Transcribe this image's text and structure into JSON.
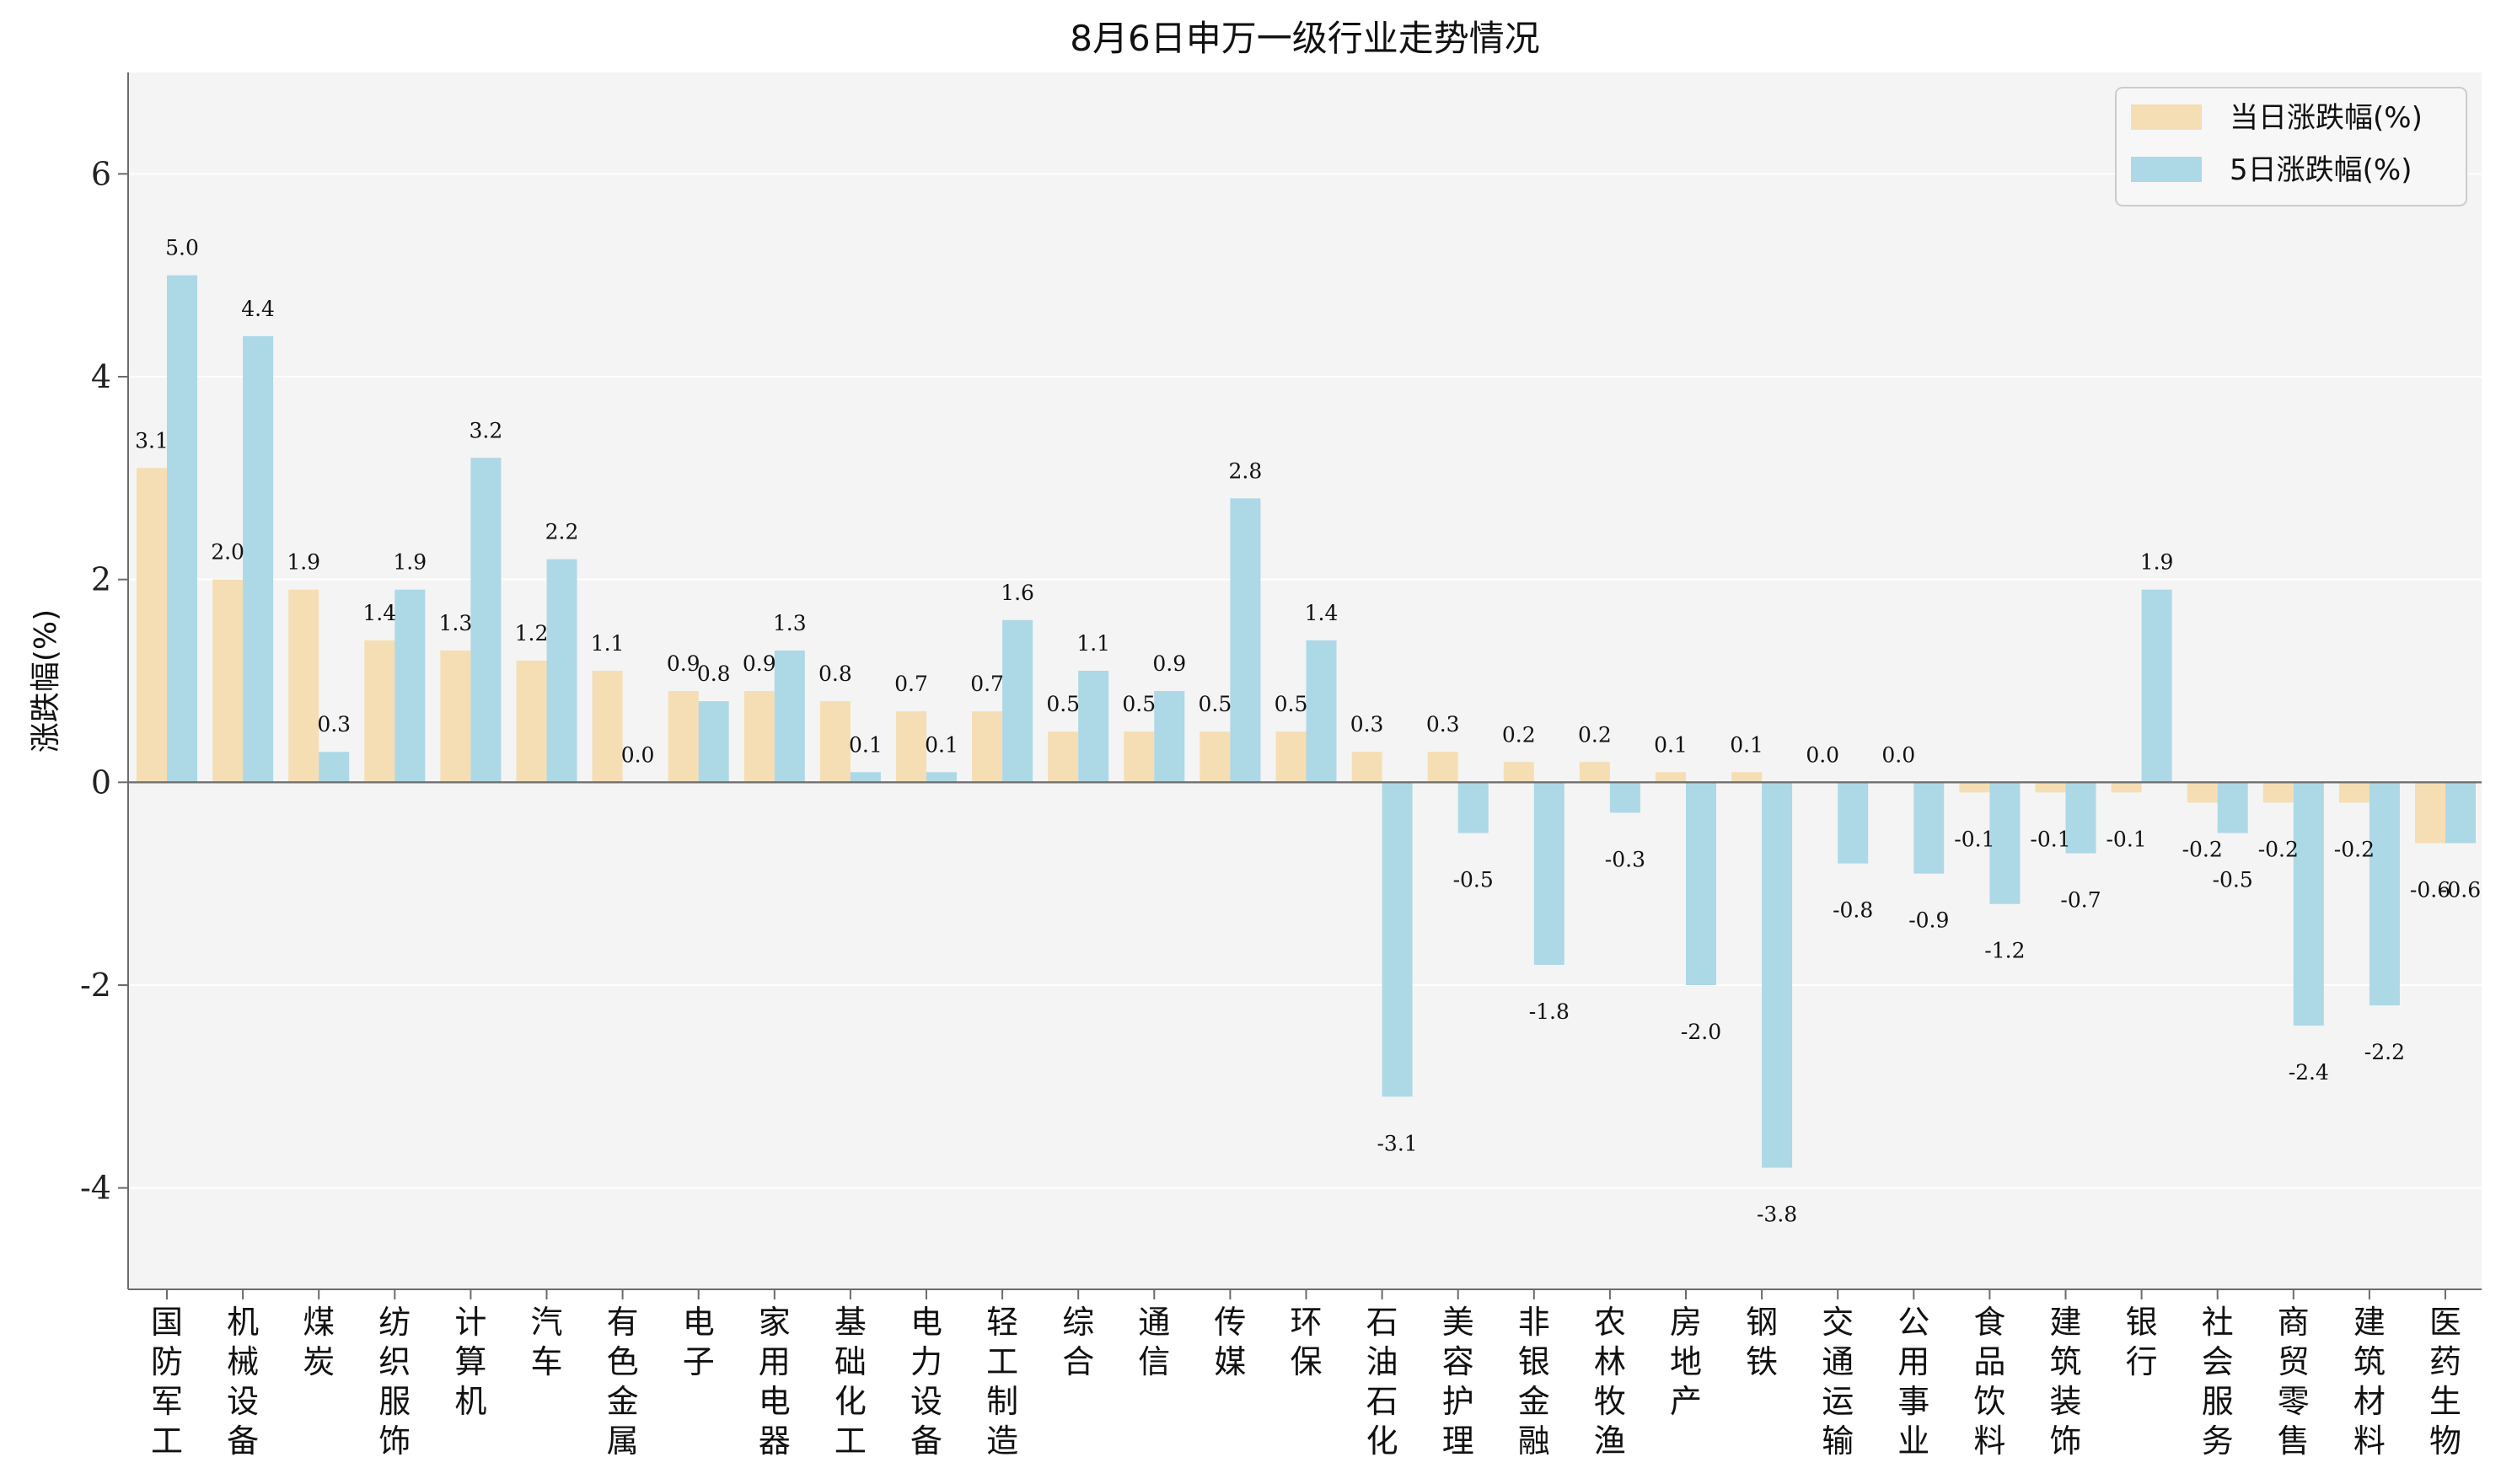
{
  "chart_data": {
    "type": "bar",
    "title": "8月6日申万一级行业走势情况",
    "xlabel": "",
    "ylabel": "涨跌幅(%)",
    "ylim": [
      -5,
      7
    ],
    "yticks": [
      -4,
      -2,
      0,
      2,
      4,
      6
    ],
    "grid": true,
    "legend_position": "top-right",
    "categories": [
      "国防军工",
      "机械设备",
      "煤炭",
      "纺织服饰",
      "计算机",
      "汽车",
      "有色金属",
      "电子",
      "家用电器",
      "基础化工",
      "电力设备",
      "轻工制造",
      "综合",
      "通信",
      "传媒",
      "环保",
      "石油石化",
      "美容护理",
      "非银金融",
      "农林牧渔",
      "房地产",
      "钢铁",
      "交通运输",
      "公用事业",
      "食品饮料",
      "建筑装饰",
      "银行",
      "社会服务",
      "商贸零售",
      "建筑材料",
      "医药生物"
    ],
    "series": [
      {
        "name": "当日涨跌幅(%)",
        "color": "#f5deb3",
        "values": [
          3.1,
          2.0,
          1.9,
          1.4,
          1.3,
          1.2,
          1.1,
          0.9,
          0.9,
          0.8,
          0.7,
          0.7,
          0.5,
          0.5,
          0.5,
          0.5,
          0.3,
          0.3,
          0.2,
          0.2,
          0.1,
          0.1,
          0.0,
          0.0,
          -0.1,
          -0.1,
          -0.1,
          -0.2,
          -0.2,
          -0.2,
          -0.6
        ]
      },
      {
        "name": "5日涨跌幅(%)",
        "color": "#add8e6",
        "values": [
          5.0,
          4.4,
          0.3,
          1.9,
          3.2,
          2.2,
          0.0,
          0.8,
          1.3,
          0.1,
          0.1,
          1.6,
          1.1,
          0.9,
          2.8,
          1.4,
          -3.1,
          -0.5,
          -1.8,
          -0.3,
          -2.0,
          -3.8,
          -0.8,
          -0.9,
          -1.2,
          -0.7,
          1.9,
          -0.5,
          -2.4,
          -2.2,
          -0.6
        ]
      }
    ]
  }
}
